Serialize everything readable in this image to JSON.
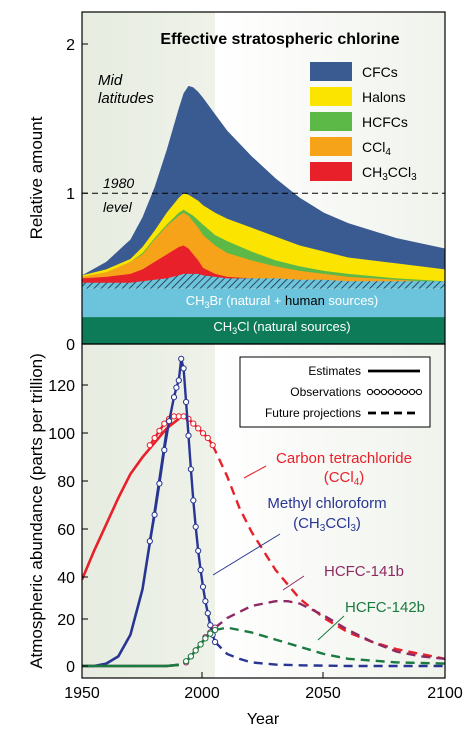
{
  "chart_data": [
    {
      "type": "area",
      "title": "Effective stratospheric chlorine",
      "ylabel": "Relative amount",
      "xlim": [
        1950,
        2100
      ],
      "ylim": [
        0,
        2.2
      ],
      "yticks": [
        "0",
        "1",
        "2"
      ],
      "annotations": {
        "mid_1": "Mid",
        "mid_2": "latitudes",
        "level_1": "1980",
        "level_2": "level"
      },
      "band_labels": {
        "ch3br": "CH3Br (natural + human sources)",
        "ch3cl": "CH3Cl (natural sources)"
      },
      "legend_placement": "top-right",
      "x": [
        1950,
        1960,
        1970,
        1975,
        1980,
        1985,
        1990,
        1992,
        1994,
        1996,
        1998,
        2000,
        2005,
        2010,
        2020,
        2030,
        2040,
        2050,
        2060,
        2080,
        2100
      ],
      "bands": {
        "ch3cl": 0.18,
        "ch3br": [
          0.39,
          0.39,
          0.39,
          0.4,
          0.41,
          0.42,
          0.44,
          0.45,
          0.45,
          0.45,
          0.45,
          0.44,
          0.43,
          0.42,
          0.42,
          0.42,
          0.41,
          0.41,
          0.4,
          0.4,
          0.4
        ]
      },
      "series": [
        {
          "name": "CH3CCl3",
          "color": "#e8202a",
          "values": [
            0.44,
            0.45,
            0.47,
            0.5,
            0.55,
            0.6,
            0.65,
            0.66,
            0.64,
            0.6,
            0.56,
            0.51,
            0.47,
            0.45,
            0.44,
            0.43,
            0.42,
            0.42,
            0.41,
            0.4,
            0.4
          ]
        },
        {
          "name": "CCl4",
          "color": "#f6a319",
          "values": [
            0.45,
            0.48,
            0.55,
            0.6,
            0.7,
            0.79,
            0.86,
            0.88,
            0.86,
            0.82,
            0.78,
            0.73,
            0.66,
            0.61,
            0.56,
            0.52,
            0.49,
            0.47,
            0.45,
            0.43,
            0.41
          ]
        },
        {
          "name": "HCFCs",
          "color": "#5cb947",
          "values": [
            0.45,
            0.48,
            0.55,
            0.61,
            0.71,
            0.8,
            0.88,
            0.9,
            0.88,
            0.86,
            0.83,
            0.8,
            0.73,
            0.69,
            0.62,
            0.56,
            0.52,
            0.49,
            0.47,
            0.44,
            0.42
          ]
        },
        {
          "name": "Halons",
          "color": "#fbe400",
          "values": [
            0.46,
            0.5,
            0.57,
            0.65,
            0.76,
            0.88,
            0.98,
            1.01,
            1.0,
            0.98,
            0.96,
            0.93,
            0.88,
            0.84,
            0.78,
            0.72,
            0.66,
            0.62,
            0.58,
            0.54,
            0.5
          ]
        },
        {
          "name": "CFCs",
          "color": "#3a5b92",
          "values": [
            0.46,
            0.55,
            0.7,
            0.85,
            1.05,
            1.3,
            1.58,
            1.68,
            1.73,
            1.72,
            1.69,
            1.65,
            1.54,
            1.43,
            1.26,
            1.11,
            0.98,
            0.88,
            0.81,
            0.71,
            0.64
          ]
        }
      ]
    },
    {
      "type": "line",
      "xlabel": "Year",
      "ylabel": "Atmospheric abundance (parts per trillion)",
      "xlim": [
        1950,
        2100
      ],
      "ylim": [
        -5,
        135
      ],
      "xticks": [
        "1950",
        "2000",
        "2050",
        "2100"
      ],
      "yticks": [
        "0",
        "20",
        "40",
        "60",
        "80",
        "100",
        "120"
      ],
      "legend": {
        "estimates": "Estimates",
        "observations": "Observations",
        "future": "Future projections",
        "placement": "top-right"
      },
      "series": [
        {
          "name_lines": [
            "Carbon tetrachloride",
            "(CCl4)"
          ],
          "color": "#e8202a",
          "estimates": {
            "x": [
              1950,
              1955,
              1960,
              1965,
              1970,
              1975,
              1980,
              1985,
              1990
            ],
            "y": [
              36,
              48,
              59,
              70,
              80,
              87,
              93,
              99,
              103
            ]
          },
          "observations": {
            "x": [
              1978,
              1980,
              1982,
              1984,
              1986,
              1988,
              1990,
              1992,
              1994,
              1996,
              1998,
              2000,
              2002,
              2004
            ],
            "y": [
              92,
              95,
              98,
              101,
              103,
              104,
              104,
              104,
              103,
              101,
              99,
              97,
              95,
              92
            ]
          },
          "projections": {
            "x": [
              2004,
              2010,
              2015,
              2020,
              2030,
              2040,
              2050,
              2060,
              2070,
              2080,
              2090,
              2100
            ],
            "y": [
              92,
              79,
              66,
              56,
              40,
              28,
              20,
              14,
              10,
              7,
              5,
              3
            ]
          }
        },
        {
          "name_lines": [
            "Methyl chloroform",
            "(CH3CCl3)"
          ],
          "color": "#283593",
          "estimates": {
            "x": [
              1950,
              1955,
              1960,
              1965,
              1970,
              1975,
              1980,
              1985
            ],
            "y": [
              0,
              0,
              1,
              4,
              13,
              32,
              64,
              98
            ]
          },
          "observations": {
            "x": [
              1978,
              1980,
              1982,
              1984,
              1986,
              1988,
              1989,
              1990,
              1991,
              1992,
              1993,
              1994,
              1995,
              1996,
              1997,
              1998,
              1999,
              2000,
              2001,
              2002,
              2003,
              2004,
              2005
            ],
            "y": [
              52,
              63,
              76,
              90,
              102,
              112,
              116,
              119,
              128,
              124,
              110,
              96,
              82,
              69,
              58,
              48,
              40,
              33,
              27,
              22,
              17,
              13,
              10
            ]
          },
          "projections": {
            "x": [
              2005,
              2010,
              2015,
              2020,
              2030,
              2040,
              2060,
              2100
            ],
            "y": [
              10,
              5,
              3,
              1.5,
              0.6,
              0.3,
              0,
              0
            ]
          }
        },
        {
          "name_lines": [
            "HCFC-141b"
          ],
          "color": "#8e2a63",
          "estimates": {
            "x": [
              1950,
              1960,
              1970,
              1980,
              1985,
              1990
            ],
            "y": [
              0,
              0,
              0,
              0,
              0,
              0.5
            ]
          },
          "observations": {
            "x": [
              1993,
              1995,
              1997,
              1999,
              2001,
              2003,
              2005
            ],
            "y": [
              1.5,
              4,
              6.5,
              9,
              12,
              14,
              16
            ]
          },
          "projections": {
            "x": [
              2005,
              2010,
              2020,
              2030,
              2035,
              2040,
              2050,
              2060,
              2070,
              2080,
              2090,
              2100
            ],
            "y": [
              16,
              20,
              25,
              27,
              27,
              26,
              21,
              15,
              10,
              6,
              4,
              3
            ]
          }
        },
        {
          "name_lines": [
            "HCFC-142b"
          ],
          "color": "#1b7a3f",
          "estimates": {
            "x": [
              1950,
              1960,
              1970,
              1980,
              1985,
              1990
            ],
            "y": [
              0,
              0,
              0,
              0,
              0,
              0.5
            ]
          },
          "observations": {
            "x": [
              1993,
              1995,
              1997,
              1999,
              2001,
              2003,
              2005
            ],
            "y": [
              2,
              4,
              6.5,
              9,
              11.5,
              13.5,
              15
            ]
          },
          "projections": {
            "x": [
              2005,
              2010,
              2020,
              2030,
              2040,
              2050,
              2060,
              2080,
              2100
            ],
            "y": [
              15,
              16,
              14,
              11,
              8,
              5,
              3,
              1.5,
              1
            ]
          }
        }
      ]
    }
  ]
}
